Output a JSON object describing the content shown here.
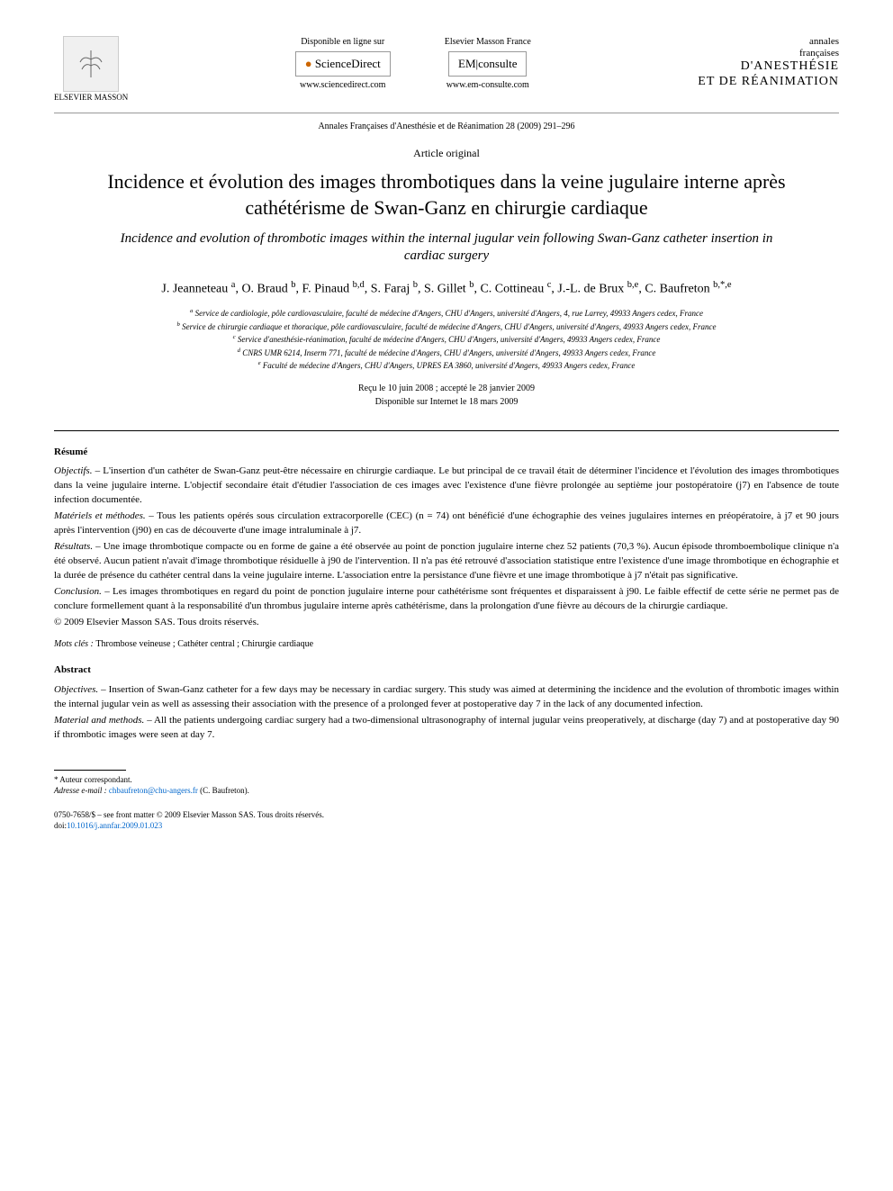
{
  "header": {
    "publisher_logo_text": "ELSEVIER MASSON",
    "left_col": {
      "available": "Disponible en ligne sur",
      "brand": "ScienceDirect",
      "url": "www.sciencedirect.com"
    },
    "right_col": {
      "label": "Elsevier Masson France",
      "brand": "EM|consulte",
      "url": "www.em-consulte.com"
    },
    "journal": {
      "line1": "annales",
      "line2": "françaises",
      "line3": "D'ANESTHÉSIE",
      "line4": "ET DE RÉANIMATION"
    }
  },
  "citation": "Annales Françaises d'Anesthésie et de Réanimation 28 (2009) 291–296",
  "article_type": "Article original",
  "title_fr": "Incidence et évolution des images thrombotiques dans la veine jugulaire interne après cathétérisme de Swan-Ganz en chirurgie cardiaque",
  "title_en": "Incidence and evolution of thrombotic images within the internal jugular vein following Swan-Ganz catheter insertion in cardiac surgery",
  "authors_html": "J. Jeanneteau <sup>a</sup>, O. Braud <sup>b</sup>, F. Pinaud <sup>b,d</sup>, S. Faraj <sup>b</sup>, S. Gillet <sup>b</sup>, C. Cottineau <sup>c</sup>, J.-L. de Brux <sup>b,e</sup>, C. Baufreton <sup>b,*,e</sup>",
  "affiliations": [
    "a Service de cardiologie, pôle cardiovasculaire, faculté de médecine d'Angers, CHU d'Angers, université d'Angers, 4, rue Larrey, 49933 Angers cedex, France",
    "b Service de chirurgie cardiaque et thoracique, pôle cardiovasculaire, faculté de médecine d'Angers, CHU d'Angers, université d'Angers, 49933 Angers cedex, France",
    "c Service d'anesthésie-réanimation, faculté de médecine d'Angers, CHU d'Angers, université d'Angers, 49933 Angers cedex, France",
    "d CNRS UMR 6214, Inserm 771, faculté de médecine d'Angers, CHU d'Angers, université d'Angers, 49933 Angers cedex, France",
    "e Faculté de médecine d'Angers, CHU d'Angers, UPRES EA 3860, université d'Angers, 49933 Angers cedex, France"
  ],
  "dates": {
    "received_accepted": "Reçu le 10 juin 2008 ; accepté le 28 janvier 2009",
    "online": "Disponible sur Internet le 18 mars 2009"
  },
  "resume": {
    "heading": "Résumé",
    "objectifs_label": "Objectifs. –",
    "objectifs": "L'insertion d'un cathéter de Swan-Ganz peut-être nécessaire en chirurgie cardiaque. Le but principal de ce travail était de déterminer l'incidence et l'évolution des images thrombotiques dans la veine jugulaire interne. L'objectif secondaire était d'étudier l'association de ces images avec l'existence d'une fièvre prolongée au septième jour postopératoire (j7) en l'absence de toute infection documentée.",
    "methodes_label": "Matériels et méthodes. –",
    "methodes": "Tous les patients opérés sous circulation extracorporelle (CEC) (n = 74) ont bénéficié d'une échographie des veines jugulaires internes en préopératoire, à j7 et 90 jours après l'intervention (j90) en cas de découverte d'une image intraluminale à j7.",
    "resultats_label": "Résultats. –",
    "resultats": "Une image thrombotique compacte ou en forme de gaine a été observée au point de ponction jugulaire interne chez 52 patients (70,3 %). Aucun épisode thromboembolique clinique n'a été observé. Aucun patient n'avait d'image thrombotique résiduelle à j90 de l'intervention. Il n'a pas été retrouvé d'association statistique entre l'existence d'une image thrombotique en échographie et la durée de présence du cathéter central dans la veine jugulaire interne. L'association entre la persistance d'une fièvre et une image thrombotique à j7 n'était pas significative.",
    "conclusion_label": "Conclusion. –",
    "conclusion": "Les images thrombotiques en regard du point de ponction jugulaire interne pour cathétérisme sont fréquentes et disparaissent à j90. Le faible effectif de cette série ne permet pas de conclure formellement quant à la responsabilité d'un thrombus jugulaire interne après cathétérisme, dans la prolongation d'une fièvre au décours de la chirurgie cardiaque.",
    "copyright": "© 2009 Elsevier Masson SAS. Tous droits réservés."
  },
  "mots_cles_label": "Mots clés :",
  "mots_cles": "Thrombose veineuse ; Cathéter central ; Chirurgie cardiaque",
  "abstract": {
    "heading": "Abstract",
    "objectives_label": "Objectives. –",
    "objectives": "Insertion of Swan-Ganz catheter for a few days may be necessary in cardiac surgery. This study was aimed at determining the incidence and the evolution of thrombotic images within the internal jugular vein as well as assessing their association with the presence of a prolonged fever at postoperative day 7 in the lack of any documented infection.",
    "methods_label": "Material and methods. –",
    "methods": "All the patients undergoing cardiac surgery had a two-dimensional ultrasonography of internal jugular veins preoperatively, at discharge (day 7) and at postoperative day 90 if thrombotic images were seen at day 7."
  },
  "footnotes": {
    "corresponding": "* Auteur correspondant.",
    "email_label": "Adresse e-mail :",
    "email": "chbaufreton@chu-angers.fr",
    "email_name": "(C. Baufreton)."
  },
  "footer": {
    "issn": "0750-7658/$ – see front matter © 2009 Elsevier Masson SAS. Tous droits réservés.",
    "doi_label": "doi:",
    "doi": "10.1016/j.annfar.2009.01.023"
  }
}
